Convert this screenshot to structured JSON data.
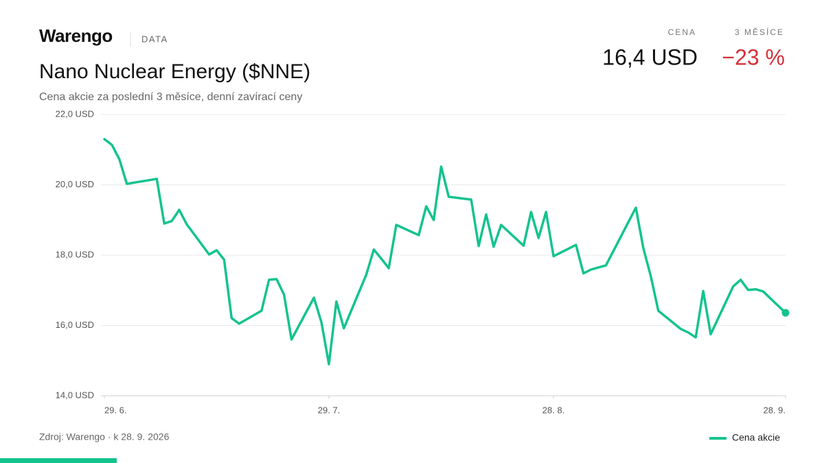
{
  "header": {
    "brand": "Warengo",
    "section": "DATA",
    "stat_price_label": "CENA",
    "stat_price": "16,4 USD",
    "stat_change_label": "3 MĚSÍCE",
    "stat_change": "−23 %"
  },
  "chart_data": {
    "type": "line",
    "title": "Nano Nuclear Energy ($NNE)",
    "subtitle": "Cena akcie za poslední 3 měsíce, denní zavírací ceny",
    "source": "Zdroj: Warengo · k 28. 9. 2026",
    "x": [
      "29. 6.",
      "30. 6.",
      "1. 7.",
      "2. 7.",
      "6. 7.",
      "7. 7.",
      "8. 7.",
      "9. 7.",
      "10. 7.",
      "13. 7.",
      "14. 7.",
      "15. 7.",
      "16. 7.",
      "17. 7.",
      "20. 7.",
      "21. 7.",
      "22. 7.",
      "23. 7.",
      "24. 7.",
      "27. 7.",
      "28. 7.",
      "29. 7.",
      "30. 7.",
      "31. 7.",
      "3. 8.",
      "4. 8.",
      "5. 8.",
      "6. 8.",
      "7. 8.",
      "10. 8.",
      "11. 8.",
      "12. 8.",
      "13. 8.",
      "14. 8.",
      "17. 8.",
      "18. 8.",
      "19. 8.",
      "20. 8.",
      "21. 8.",
      "24. 8.",
      "25. 8.",
      "26. 8.",
      "27. 8.",
      "28. 8.",
      "31. 8.",
      "1. 9.",
      "2. 9.",
      "3. 9.",
      "4. 9.",
      "8. 9.",
      "9. 9.",
      "10. 9.",
      "11. 9.",
      "14. 9.",
      "15. 9.",
      "16. 9.",
      "17. 9.",
      "18. 9.",
      "21. 9.",
      "22. 9.",
      "23. 9.",
      "24. 9.",
      "25. 9.",
      "28. 9."
    ],
    "series": [
      {
        "name": "Cena akcie",
        "color": "#14c38e",
        "values": [
          21.3,
          21.14,
          20.73,
          20.03,
          20.17,
          18.9,
          18.97,
          19.29,
          18.88,
          18.02,
          18.14,
          17.87,
          16.21,
          16.05,
          16.42,
          17.3,
          17.32,
          16.88,
          15.6,
          16.79,
          16.09,
          14.9,
          16.68,
          15.92,
          17.45,
          18.16,
          17.9,
          17.63,
          18.86,
          18.57,
          19.39,
          19.0,
          20.52,
          19.66,
          19.58,
          18.26,
          19.16,
          18.24,
          18.86,
          18.27,
          19.23,
          18.49,
          19.23,
          17.97,
          18.29,
          17.48,
          17.59,
          17.65,
          17.71,
          19.35,
          18.2,
          17.4,
          16.42,
          15.9,
          15.8,
          15.66,
          16.98,
          15.75,
          17.11,
          17.3,
          17.01,
          17.03,
          16.97,
          16.36
        ]
      }
    ],
    "xlim": [
      "29. 6.",
      "28. 9."
    ],
    "xticks": [
      "29. 6.",
      "29. 7.",
      "28. 8.",
      "28. 9."
    ],
    "ylim": [
      14,
      22
    ],
    "yticks": [
      {
        "value": 14,
        "label": "14,0 USD"
      },
      {
        "value": 16,
        "label": "16,0 USD"
      },
      {
        "value": 18,
        "label": "18,0 USD"
      },
      {
        "value": 20,
        "label": "20,0 USD"
      },
      {
        "value": 22,
        "label": "22,0 USD"
      }
    ],
    "grid": true,
    "legend": "bottom-right"
  }
}
